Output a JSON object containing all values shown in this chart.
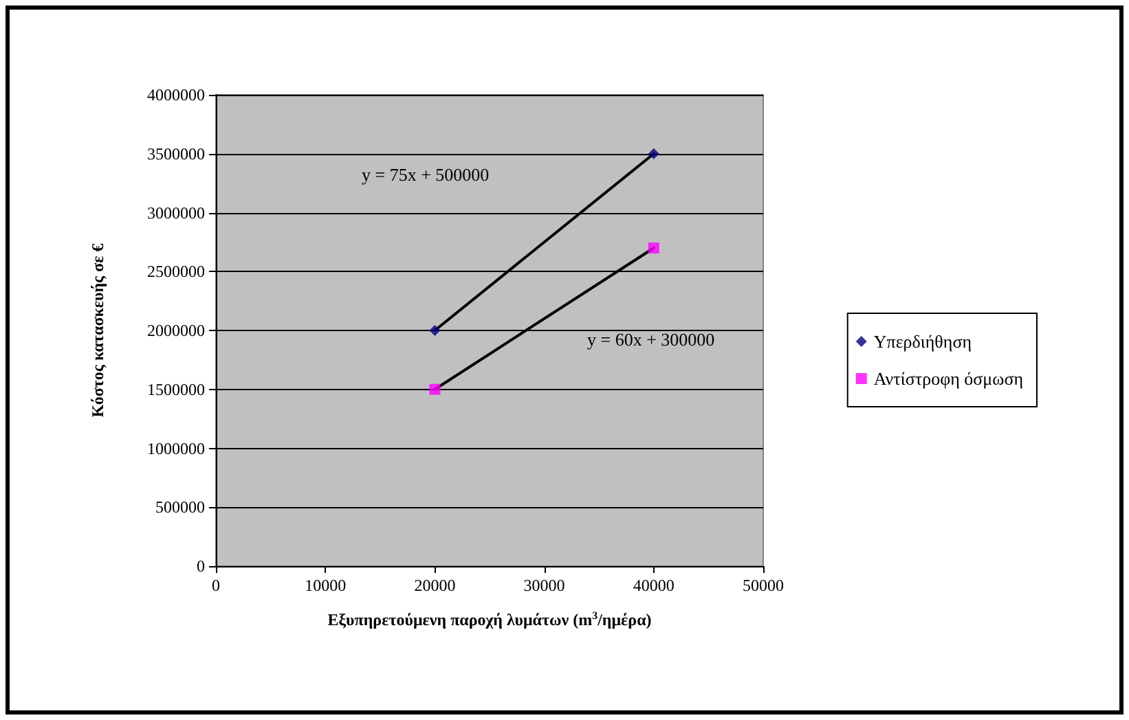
{
  "chart_data": {
    "type": "scatter",
    "xlabel": "Εξυπηρετούμενη παροχή λυμάτων (m$^{3}$/ημέρα)",
    "ylabel": "Κόστος κατασκευής σε €",
    "xlim": [
      0,
      50000
    ],
    "xticks": [
      0,
      10000,
      20000,
      30000,
      40000,
      50000
    ],
    "ylim": [
      0,
      4000000
    ],
    "yticks": [
      0,
      500000,
      1000000,
      1500000,
      2000000,
      2500000,
      3000000,
      3500000,
      4000000
    ],
    "grid": "y",
    "legend": "right",
    "x": [
      20000,
      40000
    ],
    "series": [
      {
        "name": "Υπερδιήθηση",
        "color": "#000080",
        "marker": "diamond",
        "values": [
          2000000,
          3500000
        ]
      },
      {
        "name": "Αντίστροφη όσμωση",
        "color": "#ff00ff",
        "marker": "square",
        "values": [
          1500000,
          2700000
        ]
      },
      {
        "type": "line",
        "color": "#000000",
        "marker": "none",
        "values": [
          2000000,
          3500000
        ]
      },
      {
        "type": "line",
        "color": "#000000",
        "marker": "none",
        "values": [
          1500000,
          2700000
        ]
      }
    ],
    "annotations": [
      "y = 75x + 500000",
      "y = 60x + 300000"
    ]
  }
}
